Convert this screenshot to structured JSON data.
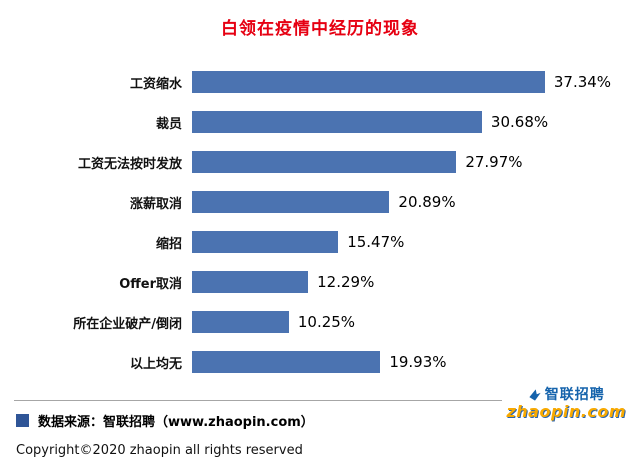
{
  "chart_data": {
    "type": "bar",
    "orientation": "horizontal",
    "title": "白领在疫情中经历的现象",
    "title_color": "#e60012",
    "bar_color": "#4b73b1",
    "categories": [
      "工资缩水",
      "裁员",
      "工资无法按时发放",
      "涨薪取消",
      "缩招",
      "Offer取消",
      "所在企业破产/倒闭",
      "以上均无"
    ],
    "values": [
      37.34,
      30.68,
      27.97,
      20.89,
      15.47,
      12.29,
      10.25,
      19.93
    ],
    "value_labels": [
      "37.34%",
      "30.68%",
      "27.97%",
      "20.89%",
      "15.47%",
      "12.29%",
      "10.25%",
      "19.93%"
    ],
    "xlim": [
      0,
      40
    ],
    "grid": false,
    "legend": "none"
  },
  "footer": {
    "bullet_color": "#2f5597",
    "source": "数据来源：智联招聘（www.zhaopin.com）",
    "copyright": "Copyright©2020 zhaopin all rights reserved",
    "divider_color": "#a6a6a6"
  },
  "logo": {
    "cn": "智联招聘",
    "en": "zhaopin.com",
    "blue": "#1563ac",
    "orange": "#f8a900"
  }
}
